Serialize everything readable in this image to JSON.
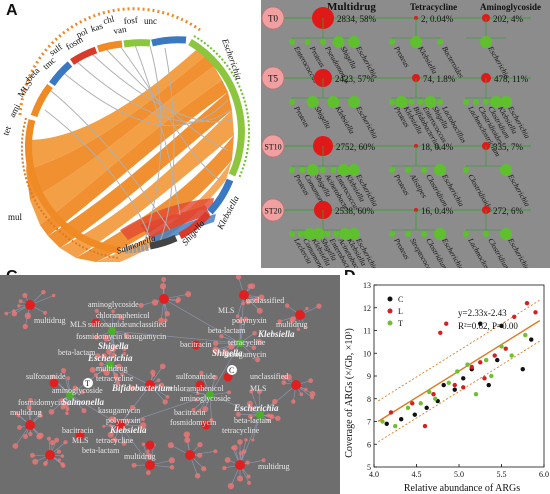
{
  "panels": {
    "a": "A",
    "b": "B",
    "c": "C",
    "d": "D"
  },
  "panel_a": {
    "labels": {
      "tet": "tet",
      "ami": "ami",
      "mls": "MLS",
      "beta": "beta",
      "tmc": "tmc",
      "sulf": "sulf",
      "fosm": "fosm",
      "pol": "pol",
      "kas": "kas",
      "chl": "chl",
      "van": "van",
      "fosf": "fosf",
      "unc": "unc",
      "mul": "mul",
      "escherichia": "Escherichia",
      "klebsiella": "Klebsiella",
      "shigella": "Shigella",
      "salmonella": "Salmonella"
    }
  },
  "panel_b": {
    "col_headers": [
      "Multidrug",
      "Tetracycline",
      "Aminoglycoside"
    ],
    "rows": [
      {
        "id": "T0",
        "values": [
          "2834, 58%",
          "2, 0.04%",
          "202, 4%"
        ],
        "leaves": [
          [
            "Enterococcus",
            "Proteus",
            "Pseudomonas",
            "Shigella",
            "Escherichia"
          ],
          [
            "Proteus",
            "Klebsiella",
            "Bacteroides"
          ],
          [
            "Escherichia"
          ]
        ]
      },
      {
        "id": "T5",
        "values": [
          "2423, 57%",
          "74, 1.8%",
          "478, 11%"
        ],
        "leaves": [
          [
            "Proteus",
            "Shigella",
            "Klebsiella",
            "Escherichia"
          ],
          [
            "Proteus",
            "Klebsiella",
            "Bifidobacterium",
            "Enterococcus",
            "Shigella",
            "Lactobacillus"
          ],
          [
            "Lachnoclostridium",
            "Clostridioides",
            "Clostridium",
            "Klebsiella",
            "Escherichia"
          ]
        ]
      },
      {
        "id": "ST10",
        "values": [
          "2752, 60%",
          "18, 0.4%",
          "335, 7%"
        ],
        "leaves": [
          [
            "Proteus",
            "Comamonas",
            "Shigella",
            "Acinetobacter",
            "Enterococcus",
            "Klebsiella",
            "Escherichia"
          ],
          [
            "Proteus",
            "Alistipes",
            "Clostridium",
            "Escherichia"
          ],
          [
            "Clostridioides",
            "Escherichia"
          ]
        ]
      },
      {
        "id": "ST20",
        "values": [
          "2538, 60%",
          "16, 0.4%",
          "272, 6%"
        ],
        "leaves": [
          [
            "Leclercia",
            "Comamonas",
            "Klebsiella",
            "Shigella",
            "Enterobacter",
            "Acinetobacter",
            "Klebsiella",
            "Escherichia"
          ],
          [
            "Proteus",
            "Streptococcus",
            "Clostridium",
            "Escherichia"
          ],
          [
            "Lachnoclostridium",
            "Clostridium",
            "Escherichia"
          ]
        ]
      }
    ]
  },
  "panel_c": {
    "nodes": {
      "aminoglycoside_top": "aminoglycoside",
      "chloramphenicol_top": "chloramphenicol",
      "mls_top": "MLS",
      "sulfonamide_top": "sulfonamide",
      "unclassified_top": "unclassified",
      "multidrug_tl": "multidrug",
      "fosmidomycin_top": "fosmidomycin",
      "kasugamycin_top": "kasugamycin",
      "beta_lactam_l": "beta-lactam",
      "unclassified_tr": "unclassified",
      "mls_tr": "MLS",
      "polymyxin_tr": "polymyxin",
      "beta_lactam_tr": "beta-lactam",
      "tetracycline_tr": "tetracycline",
      "bacitracin_tr": "bacitracin",
      "kasugamycin_tr": "kasugamycin",
      "multidrug_r": "multidrug",
      "shigella_l": "Shigella",
      "escherichia_l": "Escherichia",
      "shigella_r": "Shigella",
      "klebsiella_r": "Klebsiella",
      "multidrug_mid": "multidrug",
      "tetracycline_mid": "tetracycline",
      "sulfonamide_mid": "sulfonamide",
      "aminoglycoside_mid": "aminoglycoside",
      "bifidobacterium": "Bifidobacterium",
      "salmonella": "Salmonella",
      "t_marker": "T",
      "c_marker": "C",
      "multidrug_l2": "multidrug",
      "fosmidomycin_l2": "fosmidomycin",
      "kasugamycin_l2": "kasugamycin",
      "polymyxin_l2": "polymyxin",
      "bacitracin_l2": "bacitracin",
      "mls_l2": "MLS",
      "tetracycline_l2": "tetracycline",
      "beta_lactam_l2": "beta-lactam",
      "multidrug_bl": "multidrug",
      "klebsiella_l": "Klebsiella",
      "sulfonamide_r2": "sulfonamide",
      "chloramphenicol_r2": "chloramphenicol",
      "aminoglycoside_r2": "aminoglycoside",
      "unclassified_r2": "unclassified",
      "mls_r2": "MLS",
      "escherichia_r": "Escherichia",
      "bacitracin_r2": "bacitracin",
      "beta_lactam_r2": "beta-lactam",
      "fosmidomycin_r2": "fosmidomycin",
      "tetracycline_r2": "tetracycline",
      "multidrug_br": "multidrug"
    }
  },
  "chart_data": {
    "type": "scatter",
    "xlabel": "Relative abundance of ARGs",
    "ylabel": "Coverage of ARGs (×/Gb, ×10³)",
    "xlim": [
      4.0,
      6.0
    ],
    "ylim": [
      5,
      13
    ],
    "xticks": [
      "4.0",
      "4.5",
      "5.0",
      "5.5",
      "6.0"
    ],
    "yticks": [
      "5",
      "6",
      "7",
      "8",
      "9",
      "10",
      "11",
      "12",
      "13"
    ],
    "equation": "y=2.33x-2.43",
    "stats": "R²=0.62, P=0.00",
    "legend_position": "top-left",
    "colors": {
      "C": "#111111",
      "L": "#d42020",
      "T": "#6fbf2e",
      "fit": "#e07a1f"
    },
    "series": [
      {
        "name": "C",
        "points": [
          [
            4.15,
            6.9
          ],
          [
            4.32,
            7.1
          ],
          [
            4.48,
            7.3
          ],
          [
            4.62,
            7.6
          ],
          [
            4.75,
            7.9
          ],
          [
            4.82,
            8.6
          ],
          [
            4.95,
            8.4
          ],
          [
            5.05,
            8.9
          ],
          [
            5.15,
            9.3
          ],
          [
            5.25,
            11.3
          ],
          [
            5.35,
            8.6
          ],
          [
            5.45,
            9.7
          ],
          [
            5.5,
            11.2
          ],
          [
            5.75,
            9.3
          ],
          [
            5.85,
            10.6
          ]
        ]
      },
      {
        "name": "L",
        "points": [
          [
            4.2,
            7.4
          ],
          [
            4.45,
            7.8
          ],
          [
            4.6,
            6.8
          ],
          [
            4.7,
            8.2
          ],
          [
            4.78,
            10.9
          ],
          [
            4.85,
            11.3
          ],
          [
            4.95,
            8.6
          ],
          [
            5.05,
            8.5
          ],
          [
            5.15,
            9.4
          ],
          [
            5.25,
            9.6
          ],
          [
            5.3,
            8.9
          ],
          [
            5.42,
            9.9
          ],
          [
            5.55,
            10.2
          ],
          [
            5.65,
            11.6
          ],
          [
            5.8,
            12.2
          ],
          [
            5.9,
            11.8
          ]
        ]
      },
      {
        "name": "T",
        "points": [
          [
            4.1,
            7.0
          ],
          [
            4.25,
            6.8
          ],
          [
            4.4,
            7.6
          ],
          [
            4.55,
            7.8
          ],
          [
            4.65,
            8.3
          ],
          [
            4.72,
            8.0
          ],
          [
            4.88,
            8.7
          ],
          [
            4.98,
            9.2
          ],
          [
            5.1,
            9.5
          ],
          [
            5.2,
            8.2
          ],
          [
            5.32,
            9.7
          ],
          [
            5.38,
            9.0
          ],
          [
            5.5,
            10.3
          ],
          [
            5.62,
            9.9
          ],
          [
            5.78,
            10.8
          ]
        ]
      }
    ],
    "fit": {
      "slope": 2.33,
      "intercept": -2.43,
      "x_range": [
        4.05,
        5.95
      ],
      "ci": 0.55
    }
  }
}
